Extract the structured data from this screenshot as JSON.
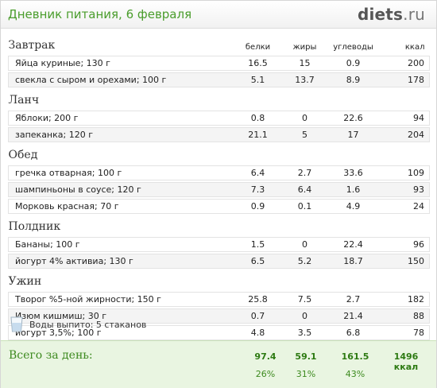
{
  "header": {
    "title": "Дневник питания, 6 февраля",
    "logo_main": "diets",
    "logo_tld": ".ru"
  },
  "columns": {
    "protein": "белки",
    "fat": "жиры",
    "carbs": "углеводы",
    "kcal": "ккал"
  },
  "meals": [
    {
      "name": "Завтрак",
      "items": [
        {
          "name": "Яйца куриные; 130 г",
          "protein": "16.5",
          "fat": "15",
          "carbs": "0.9",
          "kcal": "200"
        },
        {
          "name": "свекла с сыром и орехами; 100 г",
          "protein": "5.1",
          "fat": "13.7",
          "carbs": "8.9",
          "kcal": "178"
        }
      ]
    },
    {
      "name": "Ланч",
      "items": [
        {
          "name": "Яблоки; 200 г",
          "protein": "0.8",
          "fat": "0",
          "carbs": "22.6",
          "kcal": "94"
        },
        {
          "name": "запеканка; 120 г",
          "protein": "21.1",
          "fat": "5",
          "carbs": "17",
          "kcal": "204"
        }
      ]
    },
    {
      "name": "Обед",
      "items": [
        {
          "name": "гречка отварная; 100 г",
          "protein": "6.4",
          "fat": "2.7",
          "carbs": "33.6",
          "kcal": "109"
        },
        {
          "name": "шампиньоны в соусе; 120 г",
          "protein": "7.3",
          "fat": "6.4",
          "carbs": "1.6",
          "kcal": "93"
        },
        {
          "name": "Морковь красная; 70 г",
          "protein": "0.9",
          "fat": "0.1",
          "carbs": "4.9",
          "kcal": "24"
        }
      ]
    },
    {
      "name": "Полдник",
      "items": [
        {
          "name": "Бананы; 100 г",
          "protein": "1.5",
          "fat": "0",
          "carbs": "22.4",
          "kcal": "96"
        },
        {
          "name": "йогурт 4% активиа; 130 г",
          "protein": "6.5",
          "fat": "5.2",
          "carbs": "18.7",
          "kcal": "150"
        }
      ]
    },
    {
      "name": "Ужин",
      "items": [
        {
          "name": "Творог %5-ной жирности; 150 г",
          "protein": "25.8",
          "fat": "7.5",
          "carbs": "2.7",
          "kcal": "182"
        },
        {
          "name": "Изюм кишмиш; 30 г",
          "protein": "0.7",
          "fat": "0",
          "carbs": "21.4",
          "kcal": "88"
        },
        {
          "name": "йогурт 3,5%; 100 г",
          "protein": "4.8",
          "fat": "3.5",
          "carbs": "6.8",
          "kcal": "78"
        }
      ]
    }
  ],
  "water": {
    "label": "Воды выпито:",
    "value": "5 стаканов",
    "icon": "water-glass-icon"
  },
  "totals": {
    "label": "Всего за день:",
    "protein": "97.4",
    "fat": "59.1",
    "carbs": "161.5",
    "kcal": "1496 ккал",
    "protein_pct": "26%",
    "fat_pct": "31%",
    "carbs_pct": "43%"
  },
  "colors": {
    "brand_green": "#4a9d2c",
    "totals_bg": "#e9f5e1",
    "row_alt": "#f4f4f4"
  }
}
